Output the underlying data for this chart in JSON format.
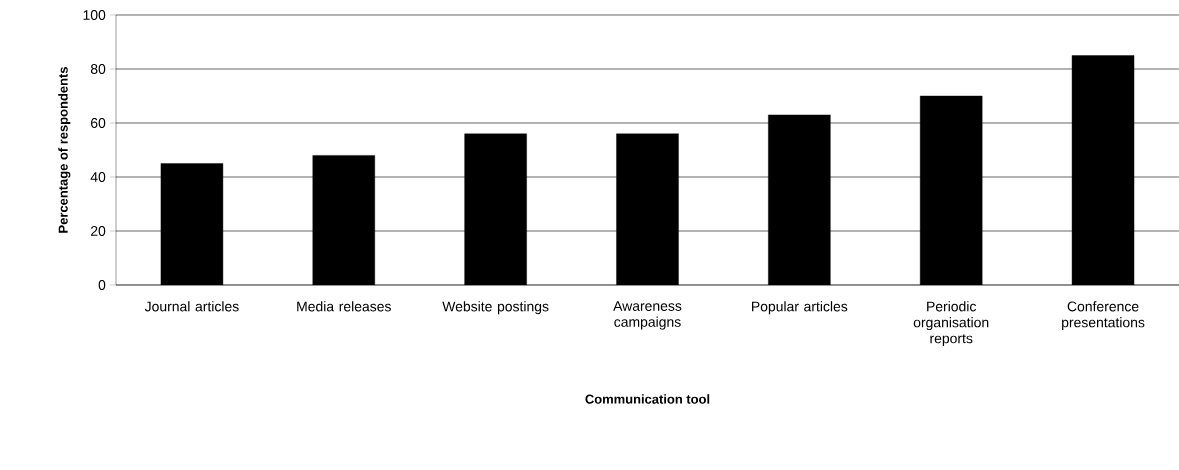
{
  "chart_data": {
    "type": "bar",
    "categories": [
      "Journal articles",
      "Media releases",
      "Website postings",
      "Awareness campaigns",
      "Popular articles",
      "Periodic organisation reports",
      "Conference presentations"
    ],
    "values": [
      45,
      48,
      56,
      56,
      63,
      70,
      85
    ],
    "color": "#000000",
    "xlabel": "Communication tool",
    "ylabel": "Percentage of respondents",
    "ylim": [
      0,
      100
    ],
    "yticks": [
      0,
      20,
      40,
      60,
      80,
      100
    ],
    "grid": "y"
  }
}
